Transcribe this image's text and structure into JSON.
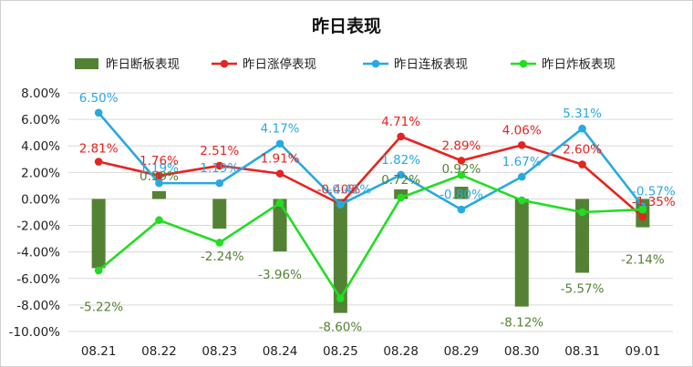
{
  "chart_data": {
    "type": "bar+line",
    "title": "昨日表现",
    "categories": [
      "08.21",
      "08.22",
      "08.23",
      "08.24",
      "08.25",
      "08.28",
      "08.29",
      "08.30",
      "08.31",
      "09.01"
    ],
    "ylim": [
      -10,
      8
    ],
    "yticks": [
      "8.00%",
      "6.00%",
      "4.00%",
      "2.00%",
      "0.00%",
      "-2.00%",
      "-4.00%",
      "-6.00%",
      "-8.00%",
      "-10.00%"
    ],
    "grid": true,
    "legend_position": "top",
    "series": [
      {
        "name": "昨日断板表现",
        "kind": "bar",
        "color": "#548235",
        "values": [
          -5.22,
          0.59,
          -2.24,
          -3.96,
          -8.6,
          0.72,
          0.92,
          -8.12,
          -5.57,
          -2.14
        ],
        "labels": [
          "-5.22%",
          "0.59%",
          "-2.24%",
          "-3.96%",
          "-8.60%",
          "0.72%",
          "0.92%",
          "-8.12%",
          "-5.57%",
          "-2.14%"
        ]
      },
      {
        "name": "昨日涨停表现",
        "kind": "line",
        "color": "#e52421",
        "values": [
          2.81,
          1.76,
          2.51,
          1.91,
          -0.4,
          4.71,
          2.89,
          4.06,
          2.6,
          -1.35
        ],
        "labels": [
          "2.81%",
          "1.76%",
          "2.51%",
          "1.91%",
          "-0.40%",
          "4.71%",
          "2.89%",
          "4.06%",
          "2.60%",
          "-1.35%"
        ]
      },
      {
        "name": "昨日连板表现",
        "kind": "line",
        "color": "#27a9e1",
        "values": [
          6.5,
          1.19,
          1.19,
          4.17,
          -0.42,
          1.82,
          -0.8,
          1.67,
          5.31,
          -0.57
        ],
        "labels": [
          "6.50%",
          "1.19%",
          "1.19%",
          "4.17%",
          "-0.42%",
          "1.82%",
          "-0.80%",
          "1.67%",
          "5.31%",
          "-0.57%"
        ]
      },
      {
        "name": "昨日炸板表现",
        "kind": "line",
        "color": "#22dd22",
        "values": [
          -5.4,
          -1.6,
          -3.3,
          -0.3,
          -7.5,
          0.1,
          1.8,
          -0.1,
          -1.0,
          -0.8
        ]
      }
    ]
  }
}
